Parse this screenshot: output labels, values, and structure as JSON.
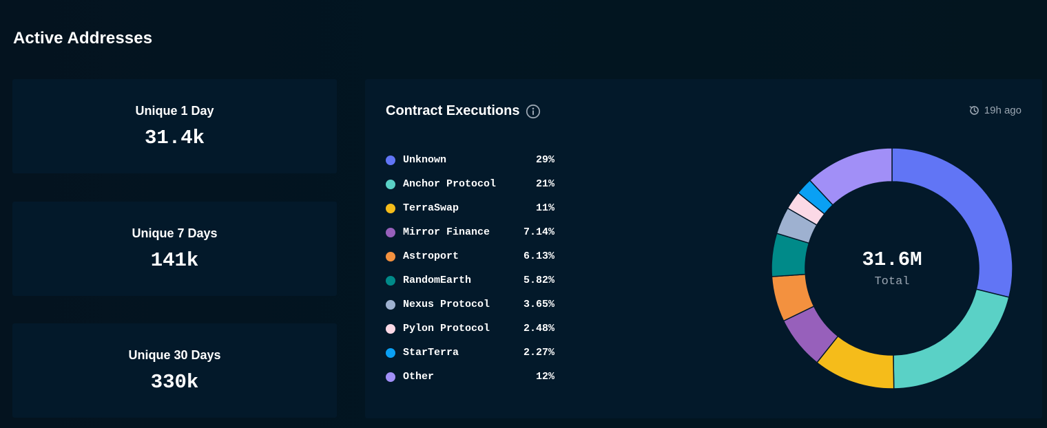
{
  "page": {
    "title": "Active Addresses"
  },
  "stats": [
    {
      "label": "Unique 1 Day",
      "value": "31.4k"
    },
    {
      "label": "Unique 7 Days",
      "value": "141k"
    },
    {
      "label": "Unique 30 Days",
      "value": "330k"
    }
  ],
  "panel": {
    "title": "Contract Executions",
    "info_icon": "info-circle-icon",
    "updated_icon": "clock-refresh-icon",
    "updated": "19h ago",
    "total_value": "31.6M",
    "total_label": "Total"
  },
  "colors": {
    "background": "#021320",
    "card": "#03192a",
    "muted_text": "#9aa5b1"
  },
  "chart_data": {
    "type": "pie",
    "variant": "donut",
    "categories": [
      "Unknown",
      "Anchor Protocol",
      "TerraSwap",
      "Mirror Finance",
      "Astroport",
      "RandomEarth",
      "Nexus Protocol",
      "Pylon Protocol",
      "StarTerra",
      "Other"
    ],
    "labels": [
      "29%",
      "21%",
      "11%",
      "7.14%",
      "6.13%",
      "5.82%",
      "3.65%",
      "2.48%",
      "2.27%",
      "12%"
    ],
    "values": [
      29,
      21,
      11,
      7.14,
      6.13,
      5.82,
      3.65,
      2.48,
      2.27,
      12
    ],
    "colors": [
      "#6175f5",
      "#5ad1c6",
      "#f5bc1a",
      "#9760bb",
      "#f3913f",
      "#008a89",
      "#9eb1d0",
      "#fbd9e6",
      "#0aa0f4",
      "#a18ff7"
    ],
    "legend_position": "left"
  }
}
